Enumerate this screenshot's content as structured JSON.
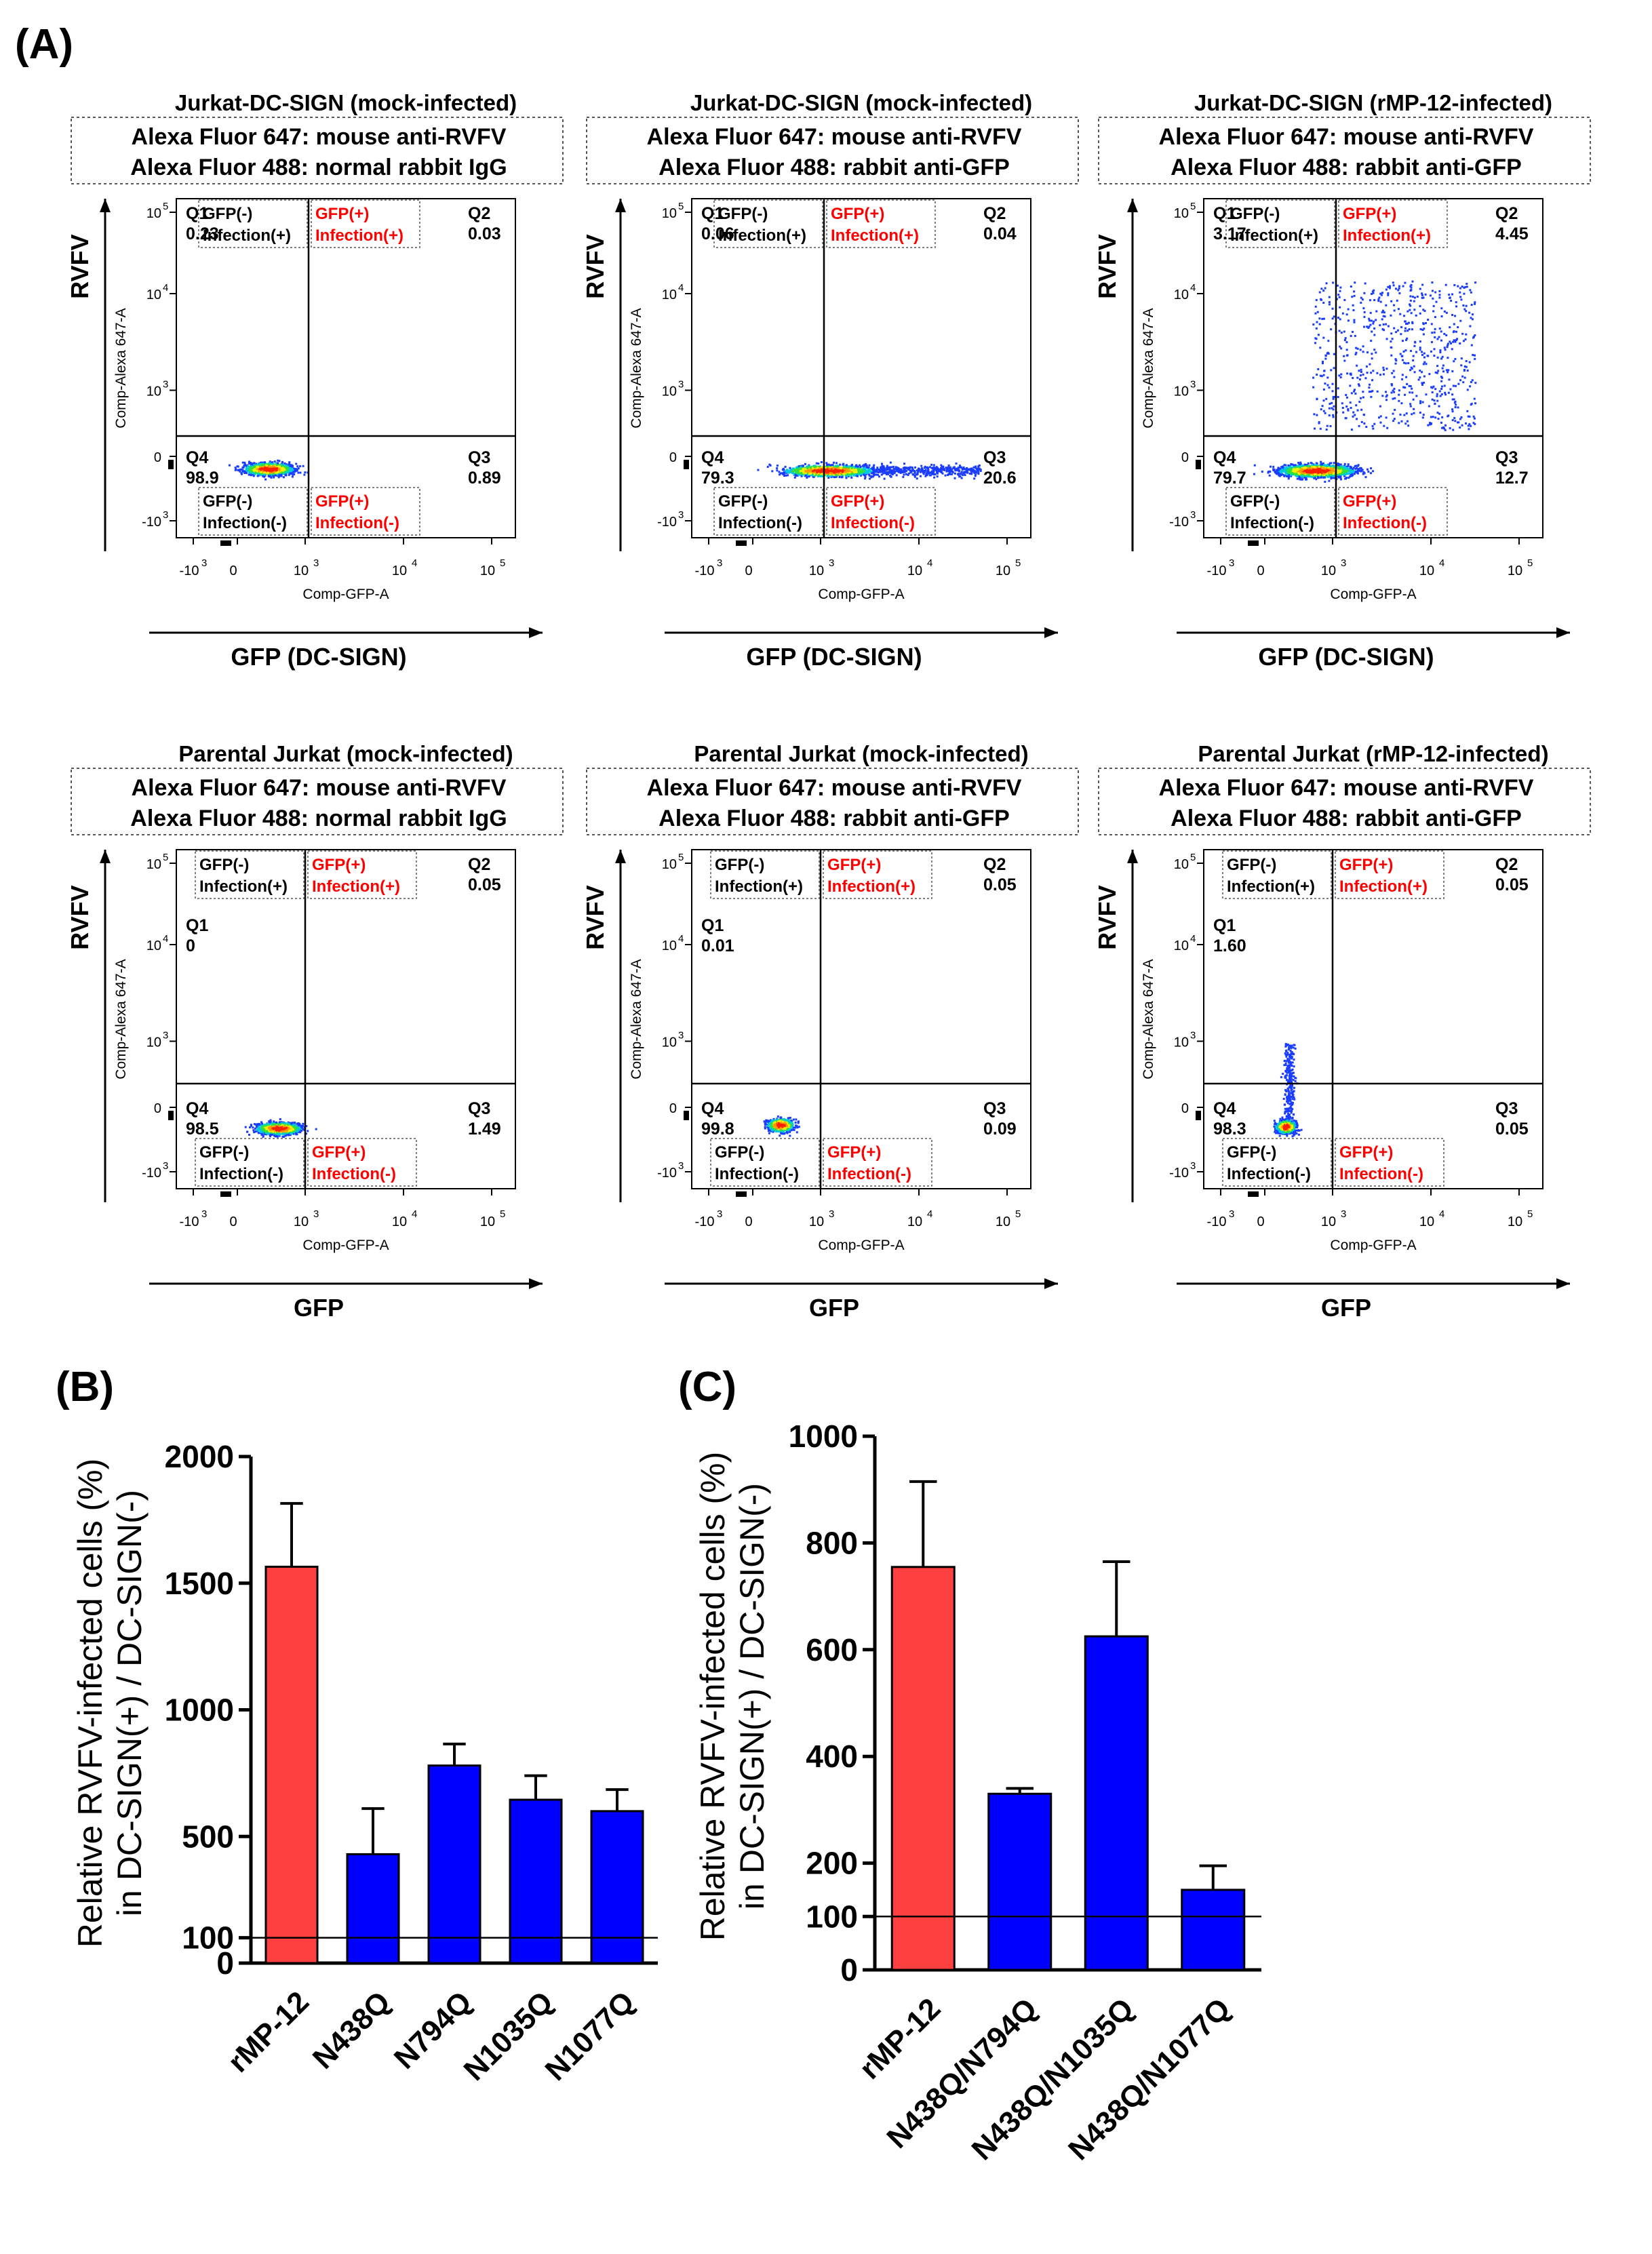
{
  "panel_labels": {
    "a": "(A)",
    "b": "(B)",
    "c": "(C)"
  },
  "colors": {
    "gfp_pos": "#ff0000",
    "bar_red": "#ff4040",
    "bar_blue": "#0000ff",
    "axis": "#000000"
  },
  "chart_data": [
    {
      "type": "scatter",
      "panel": "A",
      "title": "Jurkat-DC-SIGN (mock-infected)",
      "staining": [
        "Alexa Fluor 647: mouse anti-RVFV",
        "Alexa Fluor 488: normal rabbit IgG"
      ],
      "ylabel": "RVFV",
      "ylabel_inner": "Comp-Alexa 647-A",
      "xlabel": "GFP (DC-SIGN)",
      "xlabel_inner": "Comp-GFP-A",
      "x_ticks": [
        "-10",
        "0",
        "10",
        "10",
        "10"
      ],
      "x_tick_exp": [
        "3",
        "",
        "3",
        "4",
        "5"
      ],
      "y_ticks": [
        "10",
        "10",
        "10",
        "0",
        "-10"
      ],
      "y_tick_exp": [
        "5",
        "4",
        "3",
        "",
        "3"
      ],
      "quadrant_tags": {
        "q1": [
          "GFP(-)",
          "Infection(+)"
        ],
        "q2": [
          "GFP(+)",
          "Infection(+)"
        ],
        "q4": [
          "GFP(-)",
          "Infection(-)"
        ],
        "q3": [
          "GFP(+)",
          "Infection(-)"
        ]
      },
      "quadrants": {
        "Q1": "0.23",
        "Q2": "0.03",
        "Q4": "98.9",
        "Q3": "0.89"
      },
      "q1_pos": "top",
      "q2_pos": "top",
      "grid": false
    },
    {
      "type": "scatter",
      "panel": "A",
      "title": "Jurkat-DC-SIGN (mock-infected)",
      "staining": [
        "Alexa Fluor 647: mouse anti-RVFV",
        "Alexa Fluor 488: rabbit anti-GFP"
      ],
      "ylabel": "RVFV",
      "ylabel_inner": "Comp-Alexa 647-A",
      "xlabel": "GFP (DC-SIGN)",
      "xlabel_inner": "Comp-GFP-A",
      "x_ticks": [
        "-10",
        "0",
        "10",
        "10",
        "10"
      ],
      "x_tick_exp": [
        "3",
        "",
        "3",
        "4",
        "5"
      ],
      "y_ticks": [
        "10",
        "10",
        "10",
        "0",
        "-10"
      ],
      "y_tick_exp": [
        "5",
        "4",
        "3",
        "",
        "3"
      ],
      "quadrant_tags": {
        "q1": [
          "GFP(-)",
          "Infection(+)"
        ],
        "q2": [
          "GFP(+)",
          "Infection(+)"
        ],
        "q4": [
          "GFP(-)",
          "Infection(-)"
        ],
        "q3": [
          "GFP(+)",
          "Infection(-)"
        ]
      },
      "quadrants": {
        "Q1": "0.06",
        "Q2": "0.04",
        "Q4": "79.3",
        "Q3": "20.6"
      },
      "q1_pos": "top",
      "q2_pos": "top",
      "grid": false
    },
    {
      "type": "scatter",
      "panel": "A",
      "title": "Jurkat-DC-SIGN (rMP-12-infected)",
      "staining": [
        "Alexa Fluor 647: mouse anti-RVFV",
        "Alexa Fluor 488: rabbit anti-GFP"
      ],
      "ylabel": "RVFV",
      "ylabel_inner": "Comp-Alexa 647-A",
      "xlabel": "GFP (DC-SIGN)",
      "xlabel_inner": "Comp-GFP-A",
      "x_ticks": [
        "-10",
        "0",
        "10",
        "10",
        "10"
      ],
      "x_tick_exp": [
        "3",
        "",
        "3",
        "4",
        "5"
      ],
      "y_ticks": [
        "10",
        "10",
        "10",
        "0",
        "-10"
      ],
      "y_tick_exp": [
        "5",
        "4",
        "3",
        "",
        "3"
      ],
      "quadrant_tags": {
        "q1": [
          "GFP(-)",
          "Infection(+)"
        ],
        "q2": [
          "GFP(+)",
          "Infection(+)"
        ],
        "q4": [
          "GFP(-)",
          "Infection(-)"
        ],
        "q3": [
          "GFP(+)",
          "Infection(-)"
        ]
      },
      "quadrants": {
        "Q1": "3.17",
        "Q2": "4.45",
        "Q4": "79.7",
        "Q3": "12.7"
      },
      "q1_pos": "top",
      "q2_pos": "top",
      "grid": false
    },
    {
      "type": "scatter",
      "panel": "A",
      "title": "Parental Jurkat (mock-infected)",
      "staining": [
        "Alexa Fluor 647: mouse anti-RVFV",
        "Alexa Fluor 488: normal rabbit IgG"
      ],
      "ylabel": "RVFV",
      "ylabel_inner": "Comp-Alexa 647-A",
      "xlabel": "GFP",
      "xlabel_inner": "Comp-GFP-A",
      "x_ticks": [
        "-10",
        "0",
        "10",
        "10",
        "10"
      ],
      "x_tick_exp": [
        "3",
        "",
        "3",
        "4",
        "5"
      ],
      "y_ticks": [
        "10",
        "10",
        "10",
        "0",
        "-10"
      ],
      "y_tick_exp": [
        "5",
        "4",
        "3",
        "",
        "3"
      ],
      "quadrant_tags": {
        "q1": [
          "GFP(-)",
          "Infection(+)"
        ],
        "q2": [
          "GFP(+)",
          "Infection(+)"
        ],
        "q4": [
          "GFP(-)",
          "Infection(-)"
        ],
        "q3": [
          "GFP(+)",
          "Infection(-)"
        ]
      },
      "quadrants": {
        "Q1": "0",
        "Q2": "0.05",
        "Q4": "98.5",
        "Q3": "1.49"
      },
      "q1_pos": "mid",
      "q2_pos": "top",
      "grid": false
    },
    {
      "type": "scatter",
      "panel": "A",
      "title": "Parental Jurkat (mock-infected)",
      "staining": [
        "Alexa Fluor 647: mouse anti-RVFV",
        "Alexa Fluor 488: rabbit anti-GFP"
      ],
      "ylabel": "RVFV",
      "ylabel_inner": "Comp-Alexa 647-A",
      "xlabel": "GFP",
      "xlabel_inner": "Comp-GFP-A",
      "x_ticks": [
        "-10",
        "0",
        "10",
        "10",
        "10"
      ],
      "x_tick_exp": [
        "3",
        "",
        "3",
        "4",
        "5"
      ],
      "y_ticks": [
        "10",
        "10",
        "10",
        "0",
        "-10"
      ],
      "y_tick_exp": [
        "5",
        "4",
        "3",
        "",
        "3"
      ],
      "quadrant_tags": {
        "q1": [
          "GFP(-)",
          "Infection(+)"
        ],
        "q2": [
          "GFP(+)",
          "Infection(+)"
        ],
        "q4": [
          "GFP(-)",
          "Infection(-)"
        ],
        "q3": [
          "GFP(+)",
          "Infection(-)"
        ]
      },
      "quadrants": {
        "Q1": "0.01",
        "Q2": "0.05",
        "Q4": "99.8",
        "Q3": "0.09"
      },
      "q1_pos": "mid",
      "q2_pos": "top",
      "grid": false
    },
    {
      "type": "scatter",
      "panel": "A",
      "title": "Parental Jurkat (rMP-12-infected)",
      "staining": [
        "Alexa Fluor 647: mouse anti-RVFV",
        "Alexa Fluor 488: rabbit anti-GFP"
      ],
      "ylabel": "RVFV",
      "ylabel_inner": "Comp-Alexa 647-A",
      "xlabel": "GFP",
      "xlabel_inner": "Comp-GFP-A",
      "x_ticks": [
        "-10",
        "0",
        "10",
        "10",
        "10"
      ],
      "x_tick_exp": [
        "3",
        "",
        "3",
        "4",
        "5"
      ],
      "y_ticks": [
        "10",
        "10",
        "10",
        "0",
        "-10"
      ],
      "y_tick_exp": [
        "5",
        "4",
        "3",
        "",
        "3"
      ],
      "quadrant_tags": {
        "q1": [
          "GFP(-)",
          "Infection(+)"
        ],
        "q2": [
          "GFP(+)",
          "Infection(+)"
        ],
        "q4": [
          "GFP(-)",
          "Infection(-)"
        ],
        "q3": [
          "GFP(+)",
          "Infection(-)"
        ]
      },
      "quadrants": {
        "Q1": "1.60",
        "Q2": "0.05",
        "Q4": "98.3",
        "Q3": "0.05"
      },
      "q1_pos": "mid",
      "q2_pos": "top",
      "grid": false
    },
    {
      "type": "bar",
      "panel": "B",
      "ylabel": [
        "Relative RVFV-infected cells (%)",
        "in DC-SIGN(+) / DC-SIGN(-)"
      ],
      "categories": [
        "rMP-12",
        "N438Q",
        "N794Q",
        "N1035Q",
        "N1077Q"
      ],
      "values": [
        1565,
        430,
        780,
        645,
        600
      ],
      "errors": [
        250,
        180,
        85,
        95,
        85
      ],
      "bar_colors": [
        "red",
        "blue",
        "blue",
        "blue",
        "blue"
      ],
      "ylim": [
        0,
        2000
      ],
      "y_ticks": [
        "0",
        "100",
        "500",
        "1000",
        "1500",
        "2000"
      ],
      "reference_line": 100,
      "grid": false
    },
    {
      "type": "bar",
      "panel": "C",
      "ylabel": [
        "Relative RVFV-infected cells (%)",
        "in DC-SIGN(+) / DC-SIGN(-)"
      ],
      "categories": [
        "rMP-12",
        "N438Q/N794Q",
        "N438Q/N1035Q",
        "N438Q/N1077Q"
      ],
      "values": [
        755,
        330,
        625,
        150
      ],
      "errors": [
        160,
        10,
        140,
        45
      ],
      "bar_colors": [
        "red",
        "blue",
        "blue",
        "blue"
      ],
      "ylim": [
        0,
        1000
      ],
      "y_ticks": [
        "0",
        "100",
        "200",
        "400",
        "600",
        "800",
        "1000"
      ],
      "reference_line": 100,
      "grid": false
    }
  ]
}
